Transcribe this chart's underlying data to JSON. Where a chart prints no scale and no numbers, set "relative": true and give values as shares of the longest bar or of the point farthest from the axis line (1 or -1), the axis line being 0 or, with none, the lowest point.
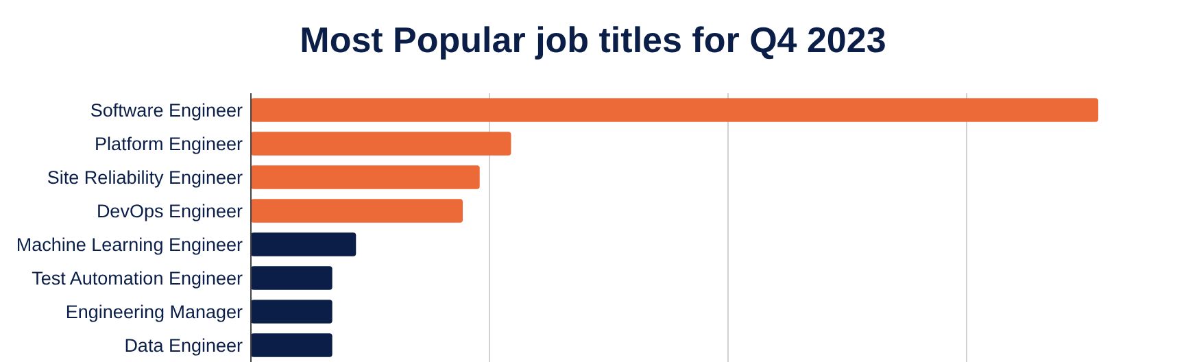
{
  "chart_data": {
    "type": "bar",
    "orientation": "horizontal",
    "relative": true,
    "title": "Most Popular job titles for Q4 2023",
    "categories": [
      "Software Engineer",
      "Platform Engineer",
      "Site Reliability Engineer",
      "DevOps Engineer",
      "Machine Learning Engineer",
      "Test Automation Engineer",
      "Engineering Manager",
      "Data Engineer"
    ],
    "values": [
      1,
      0.307,
      0.27,
      0.25,
      0.124,
      0.096,
      0.096,
      0.096
    ],
    "colors": [
      "#ec6a37",
      "#ec6a37",
      "#ec6a37",
      "#ec6a37",
      "#0b1e48",
      "#0b1e48",
      "#0b1e48",
      "#0b1e48"
    ],
    "grid": "x"
  }
}
